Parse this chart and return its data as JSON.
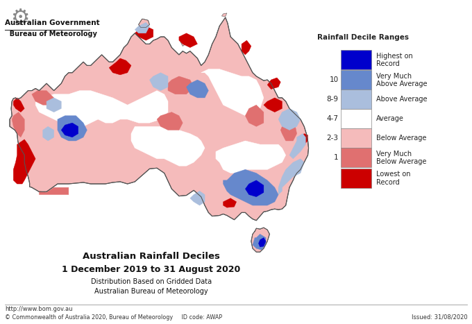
{
  "title1": "Australian Rainfall Deciles",
  "title2": "1 December 2019 to 31 August 2020",
  "subtitle1": "Distribution Based on Gridded Data",
  "subtitle2": "Australian Bureau of Meteorology",
  "legend_title": "Rainfall Decile Ranges",
  "legend_items": [
    {
      "label": "Highest on\nRecord",
      "color": "#0000CC",
      "decile": ""
    },
    {
      "label": "Very Much\nAbove Average",
      "color": "#6688CC",
      "decile": "10"
    },
    {
      "label": "Above Average",
      "color": "#AABEDD",
      "decile": "8-9"
    },
    {
      "label": "Average",
      "color": "#FFFFFF",
      "decile": "4-7"
    },
    {
      "label": "Below Average",
      "color": "#F5BBBB",
      "decile": "2-3"
    },
    {
      "label": "Very Much\nBelow Average",
      "color": "#E07070",
      "decile": "1"
    },
    {
      "label": "Lowest on\nRecord",
      "color": "#CC0000",
      "decile": ""
    }
  ],
  "footer_left": "http://www.bom.gov.au",
  "footer_copyright": "© Commonwealth of Australia 2020, Bureau of Meteorology",
  "footer_idcode": "ID code: AWAP",
  "footer_issued": "Issued: 31/08/2020",
  "bg_color": "#FFFFFF",
  "aus_fill": "#F5BBBB",
  "aus_edge": "#555555",
  "red_lowest": "#CC0000",
  "red_very_below": "#E07070",
  "blue_highest": "#0000CC",
  "blue_very_above": "#6688CC",
  "blue_above": "#AABEDD",
  "white_avg": "#FFFFFF"
}
